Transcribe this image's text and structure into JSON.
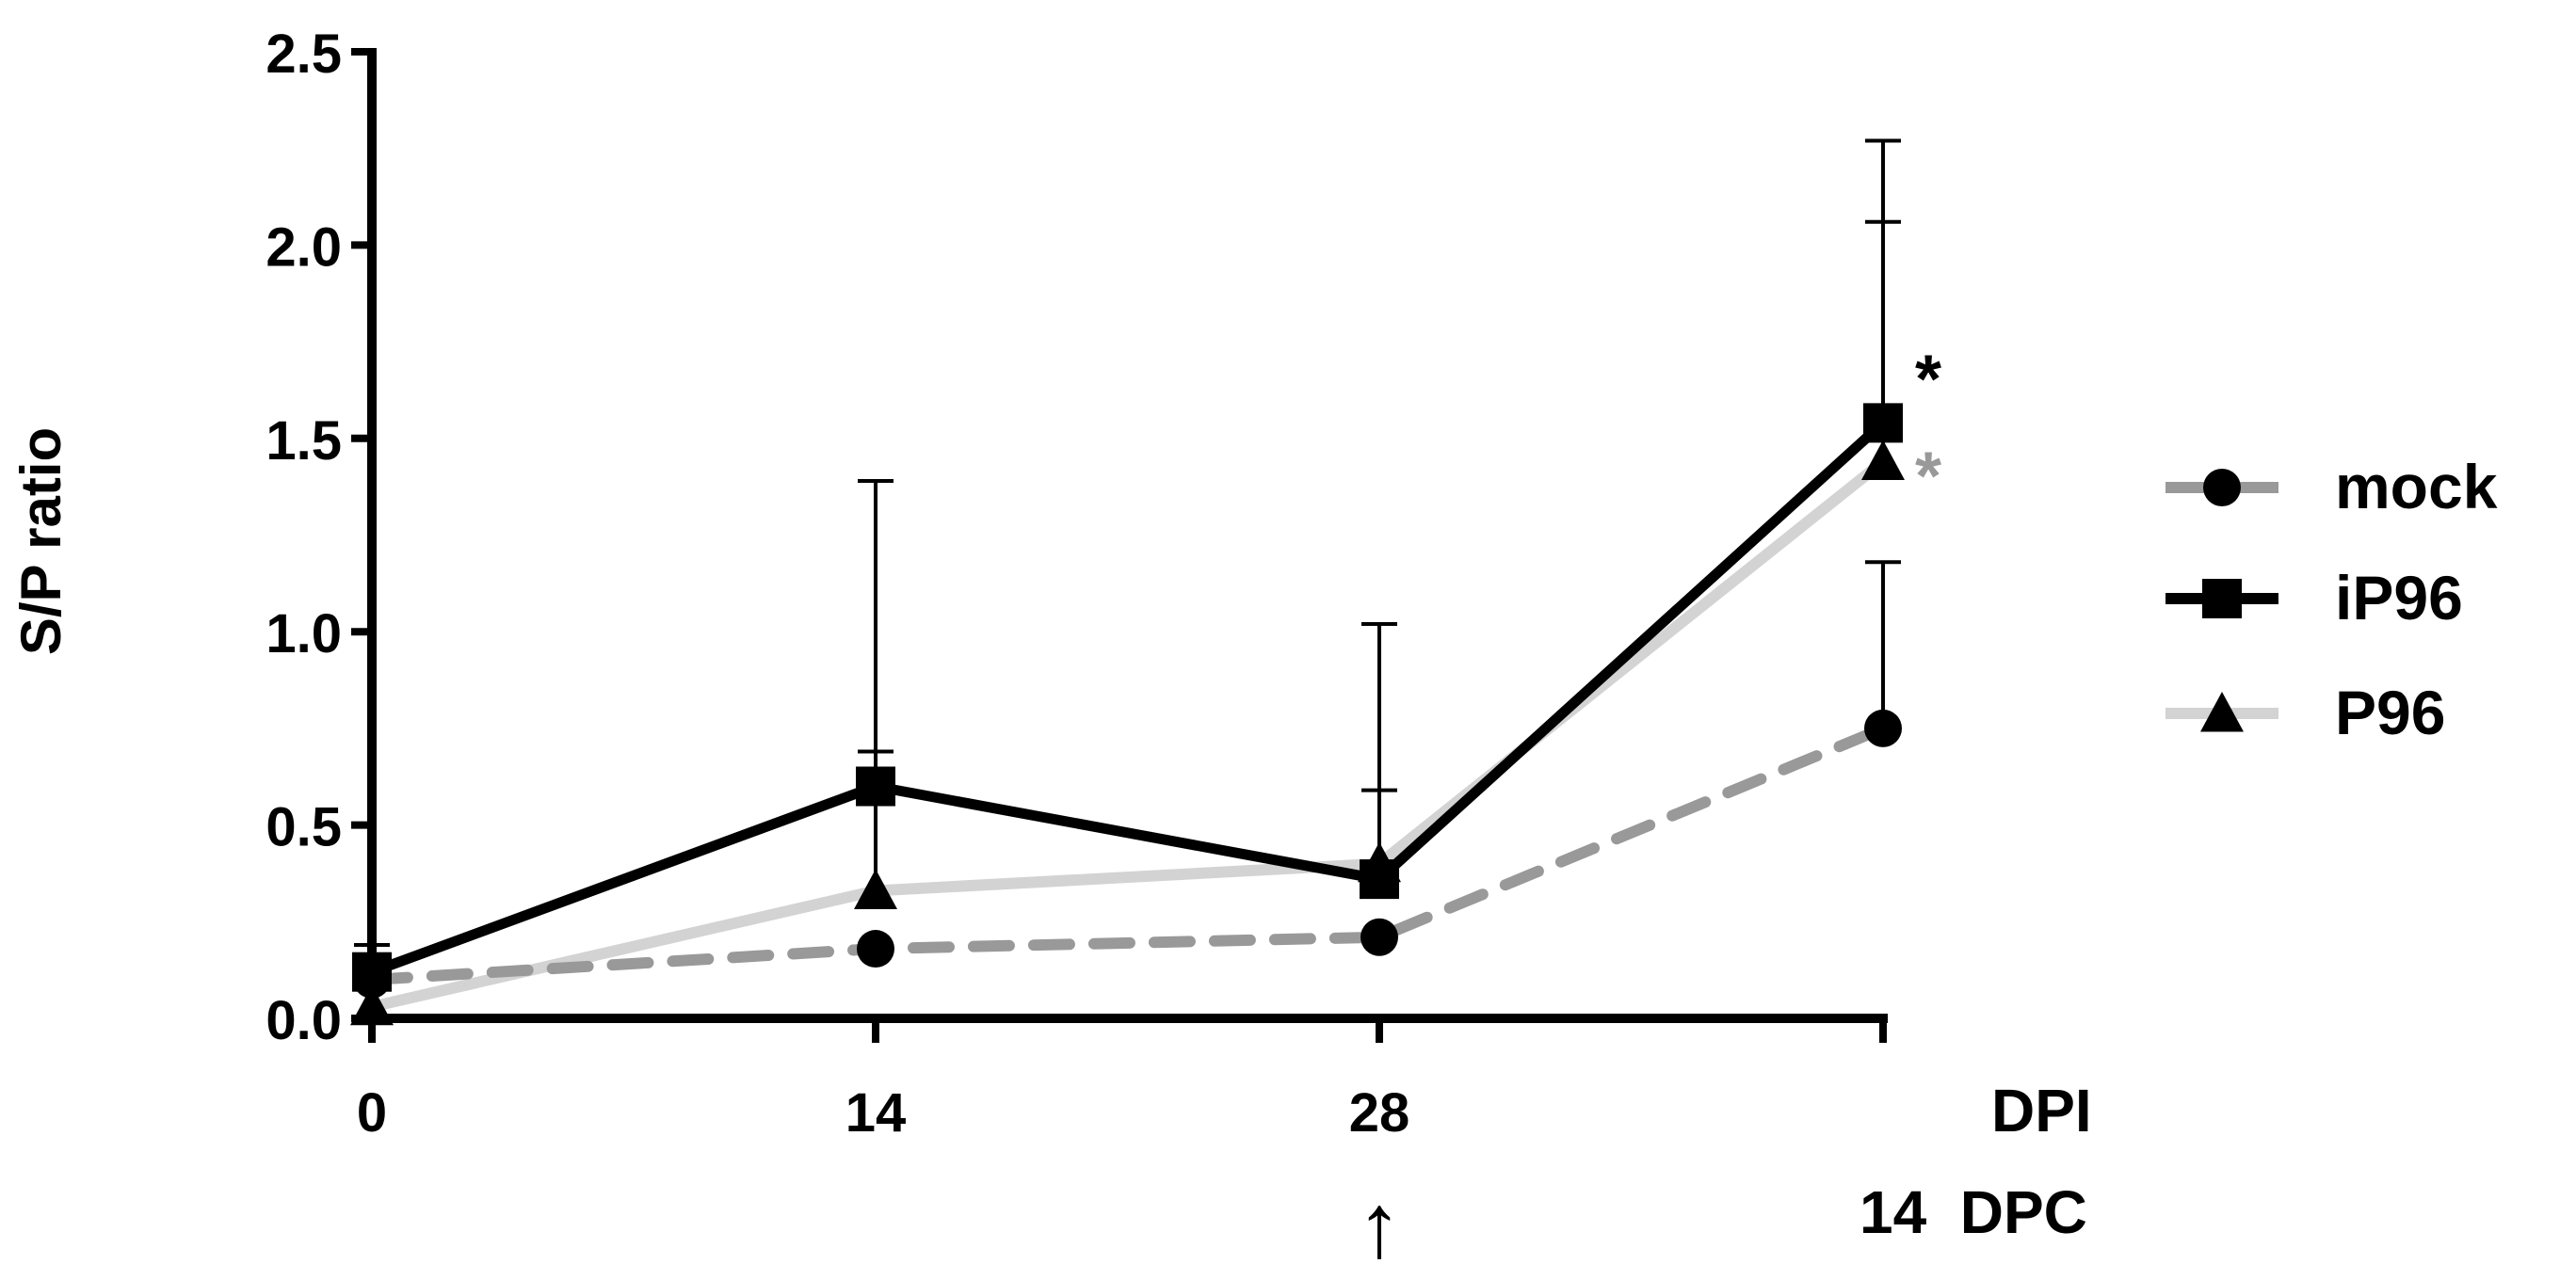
{
  "chart_data": {
    "type": "line",
    "ylabel": "S/P ratio",
    "ylim": [
      0,
      2.5
    ],
    "yticks": [
      "0.0",
      "0.5",
      "1.0",
      "1.5",
      "2.0",
      "2.5"
    ],
    "x": [
      0,
      14,
      28,
      42
    ],
    "xtick_labels": [
      "0",
      "14",
      "28"
    ],
    "x_axis_label": "DPI",
    "x_extra_label": "14  DPC",
    "challenge_arrow": "↑",
    "legend_position": "right",
    "series": [
      {
        "name": "mock",
        "marker": "circle",
        "line_style": "dashed",
        "color": "#999999",
        "values": [
          0.1,
          0.18,
          0.21,
          0.75
        ],
        "error_upper": [
          null,
          null,
          null,
          1.18
        ]
      },
      {
        "name": "iP96",
        "marker": "square",
        "line_style": "solid",
        "color": "#000000",
        "values": [
          0.12,
          0.6,
          0.36,
          1.54
        ],
        "error_upper": [
          0.19,
          1.39,
          1.02,
          2.27
        ]
      },
      {
        "name": "P96",
        "marker": "triangle",
        "line_style": "solid",
        "color": "#d3d3d3",
        "values": [
          0.03,
          0.33,
          0.4,
          1.44
        ],
        "error_upper": [
          null,
          0.69,
          0.59,
          2.06
        ]
      }
    ],
    "annotations": [
      {
        "text": "*",
        "color": "#000000",
        "series": "iP96"
      },
      {
        "text": "*",
        "color": "#999999",
        "series": "P96"
      }
    ]
  }
}
